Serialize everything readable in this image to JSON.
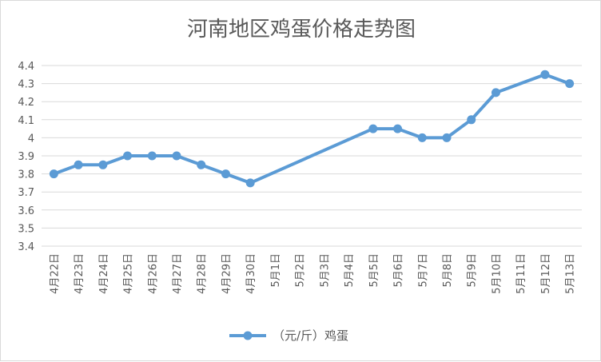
{
  "chart_data": {
    "type": "line",
    "title": "河南地区鸡蛋价格走势图",
    "xlabel": "",
    "ylabel": "",
    "ylim": [
      3.4,
      4.4
    ],
    "ytick_step": 0.1,
    "ytick_labels": [
      "3.4",
      "3.5",
      "3.6",
      "3.7",
      "3.8",
      "3.9",
      "4",
      "4.1",
      "4.2",
      "4.3",
      "4.4"
    ],
    "grid": true,
    "legend_position": "bottom",
    "categories": [
      "4月22日",
      "4月23日",
      "4月24日",
      "4月25日",
      "4月26日",
      "4月27日",
      "4月28日",
      "4月29日",
      "4月30日",
      "5月1日",
      "5月2日",
      "5月3日",
      "5月4日",
      "5月5日",
      "5月6日",
      "5月7日",
      "5月8日",
      "5月9日",
      "5月10日",
      "5月11日",
      "5月12日",
      "5月13日"
    ],
    "series": [
      {
        "name": "（元/斤）鸡蛋",
        "color": "#5b9bd5",
        "values": [
          3.8,
          3.85,
          3.85,
          3.9,
          3.9,
          3.9,
          3.85,
          3.8,
          3.75,
          null,
          null,
          null,
          null,
          4.05,
          4.05,
          4.0,
          4.0,
          4.1,
          4.25,
          null,
          4.35,
          4.3
        ]
      }
    ]
  },
  "colors": {
    "line": "#5b9bd5",
    "grid": "#d9d9d9",
    "text": "#595959"
  }
}
